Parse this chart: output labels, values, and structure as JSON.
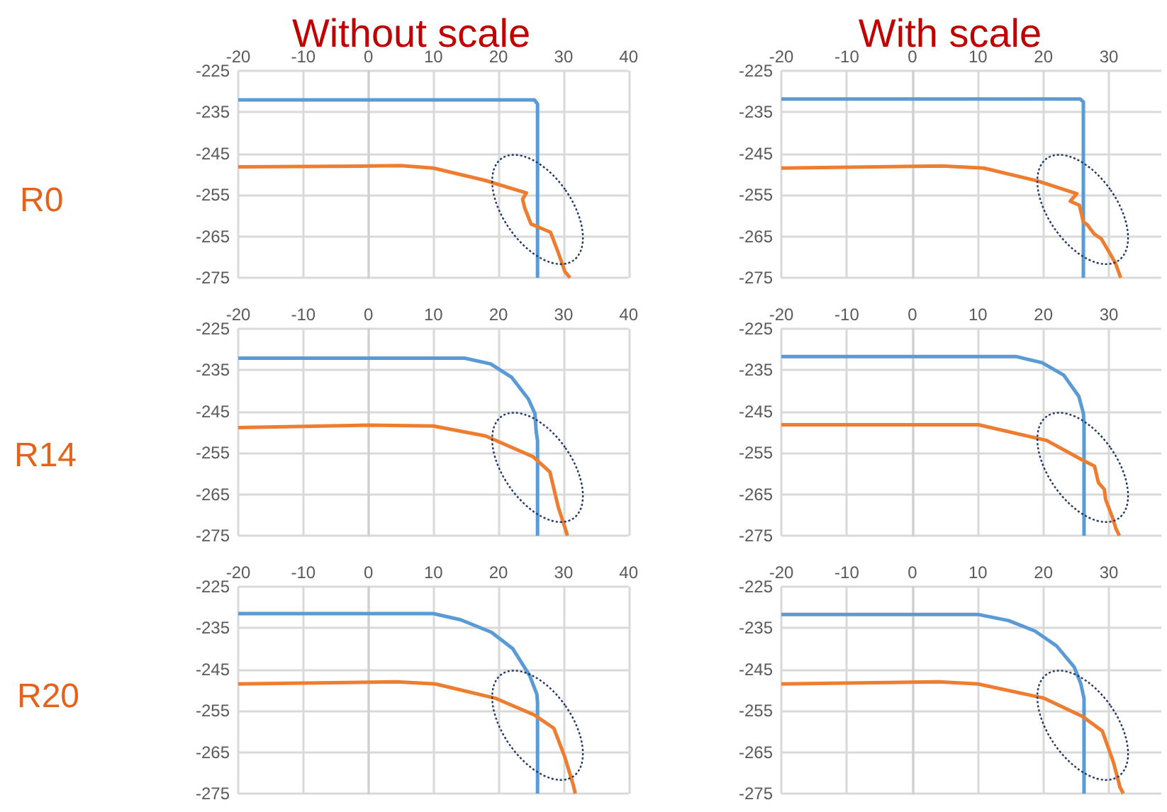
{
  "chart_data": [
    {
      "type": "line",
      "xlim": [
        -20,
        40
      ],
      "xticks": [
        -20,
        -10,
        0,
        10,
        20,
        30,
        40
      ],
      "ylim": [
        -275,
        -225
      ],
      "yticks": [
        -275,
        -265,
        -255,
        -245,
        -235,
        -225
      ],
      "grid": true,
      "marker": "none",
      "series": [
        {
          "color": "#5b9bd5",
          "x": [
            -20,
            25.5,
            26,
            26
          ],
          "values": [
            -232,
            -232,
            -233,
            -275
          ]
        },
        {
          "color": "#ed7d31",
          "x": [
            -20,
            0,
            5,
            10,
            18,
            24.3,
            23.7,
            24,
            25,
            28,
            29.2,
            30.2,
            31
          ],
          "values": [
            -248.2,
            -248,
            -247.9,
            -248.5,
            -251.5,
            -254.5,
            -256,
            -258,
            -262,
            -264,
            -269,
            -273.5,
            -275
          ]
        }
      ]
    },
    {
      "type": "line",
      "xlim": [
        -20,
        38
      ],
      "xticks": [
        -20,
        -10,
        0,
        10,
        20,
        30
      ],
      "ylim": [
        -275,
        -225
      ],
      "yticks": [
        -275,
        -265,
        -255,
        -245,
        -235,
        -225
      ],
      "grid": true,
      "marker": "none",
      "series": [
        {
          "color": "#5b9bd5",
          "x": [
            -20,
            25.6,
            26.1,
            26.1
          ],
          "values": [
            -231.8,
            -231.8,
            -232.5,
            -275
          ]
        },
        {
          "color": "#ed7d31",
          "x": [
            -20,
            4.5,
            10.9,
            19.1,
            25.1,
            24.1,
            25.5,
            26.1,
            26.7,
            27.8,
            28.8,
            30,
            31,
            31.8
          ],
          "values": [
            -248.5,
            -248,
            -248.5,
            -251.6,
            -254.7,
            -256.5,
            -257.5,
            -261.5,
            -262.2,
            -264.5,
            -265.5,
            -268.7,
            -271.5,
            -275
          ]
        }
      ]
    },
    {
      "type": "line",
      "xlim": [
        -20,
        40
      ],
      "xticks": [
        -20,
        -10,
        0,
        10,
        20,
        30,
        40
      ],
      "ylim": [
        -275,
        -225
      ],
      "yticks": [
        -275,
        -265,
        -255,
        -245,
        -235,
        -225
      ],
      "grid": true,
      "marker": "none",
      "series": [
        {
          "color": "#5b9bd5",
          "x": [
            -20,
            14.8,
            18.8,
            22,
            24.6,
            25.6,
            25.8,
            26,
            26
          ],
          "values": [
            -232.1,
            -232.1,
            -233.5,
            -236.7,
            -242,
            -245.5,
            -250,
            -252,
            -275
          ]
        },
        {
          "color": "#ed7d31",
          "x": [
            -20,
            0,
            10,
            18,
            25.3,
            27.9,
            29.2,
            30.2,
            30.6
          ],
          "values": [
            -248.9,
            -248.3,
            -248.5,
            -250.9,
            -255.9,
            -259.6,
            -268.2,
            -273,
            -275
          ]
        }
      ]
    },
    {
      "type": "line",
      "xlim": [
        -20,
        38
      ],
      "xticks": [
        -20,
        -10,
        0,
        10,
        20,
        30
      ],
      "ylim": [
        -275,
        -225
      ],
      "yticks": [
        -275,
        -265,
        -255,
        -245,
        -235,
        -225
      ],
      "grid": true,
      "marker": "none",
      "series": [
        {
          "color": "#5b9bd5",
          "x": [
            -20,
            15.8,
            19.8,
            23.1,
            25.4,
            26.1,
            26.2,
            26.2
          ],
          "values": [
            -231.7,
            -231.7,
            -233.2,
            -236.2,
            -241.3,
            -245.4,
            -248,
            -275
          ]
        },
        {
          "color": "#ed7d31",
          "x": [
            -20,
            10.1,
            20.5,
            25.8,
            27.8,
            28.4,
            29.3,
            29.5,
            30.5,
            31.1,
            31.6
          ],
          "values": [
            -248.2,
            -248.2,
            -252,
            -256.6,
            -258.2,
            -262.2,
            -263.8,
            -266.3,
            -270.4,
            -273.4,
            -275
          ]
        }
      ]
    },
    {
      "type": "line",
      "xlim": [
        -20,
        40
      ],
      "xticks": [
        -20,
        -10,
        0,
        10,
        20,
        30,
        40
      ],
      "ylim": [
        -275,
        -225
      ],
      "yticks": [
        -275,
        -265,
        -255,
        -245,
        -235,
        -225
      ],
      "grid": true,
      "marker": "none",
      "series": [
        {
          "color": "#5b9bd5",
          "x": [
            -20,
            10,
            14.2,
            18.9,
            22.2,
            24.8,
            25.9,
            26,
            26
          ],
          "values": [
            -231.5,
            -231.5,
            -233,
            -236,
            -240,
            -246.5,
            -251,
            -253,
            -275
          ]
        },
        {
          "color": "#ed7d31",
          "x": [
            -20,
            4.3,
            10.3,
            19.6,
            25.5,
            28.5,
            30.2,
            31.5,
            31.8
          ],
          "values": [
            -248.5,
            -248,
            -248.5,
            -252,
            -256,
            -259.2,
            -266.2,
            -273,
            -275
          ]
        }
      ]
    },
    {
      "type": "line",
      "xlim": [
        -20,
        38
      ],
      "xticks": [
        -20,
        -10,
        0,
        10,
        20,
        30
      ],
      "ylim": [
        -275,
        -225
      ],
      "yticks": [
        -275,
        -265,
        -255,
        -245,
        -235,
        -225
      ],
      "grid": true,
      "marker": "none",
      "series": [
        {
          "color": "#5b9bd5",
          "x": [
            -20,
            10,
            14.7,
            18.7,
            22,
            24.7,
            25.7,
            26.2,
            26.2
          ],
          "values": [
            -231.7,
            -231.7,
            -233.2,
            -235.7,
            -239.3,
            -244.4,
            -248.4,
            -252,
            -275
          ]
        },
        {
          "color": "#ed7d31",
          "x": [
            -20,
            4,
            10,
            20,
            26,
            29,
            30.7,
            31.7,
            32.2
          ],
          "values": [
            -248.5,
            -248,
            -248.5,
            -251.9,
            -256.4,
            -259.9,
            -267.5,
            -273.5,
            -275
          ]
        }
      ]
    },
    {
      "type": "other",
      "annotations": [
        "Without scale",
        "With scale",
        "R0",
        "R14",
        "R20"
      ]
    }
  ]
}
